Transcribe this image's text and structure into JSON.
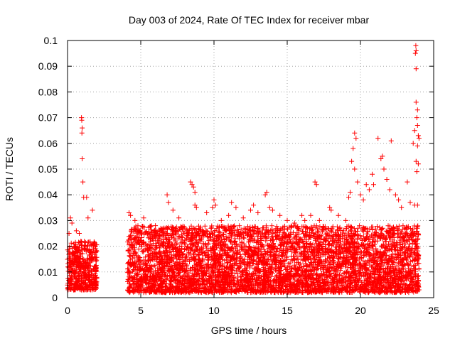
{
  "chart_data": {
    "type": "scatter",
    "title": "Day 003 of 2024, Rate Of TEC Index for receiver mbar",
    "xlabel": "GPS time / hours",
    "ylabel": "ROTI / TECUs",
    "xlim": [
      0,
      25
    ],
    "ylim": [
      0,
      0.1
    ],
    "x_ticks": [
      "0",
      "5",
      "10",
      "15",
      "20",
      "25"
    ],
    "y_ticks": [
      "0",
      "0.01",
      "0.02",
      "0.03",
      "0.04",
      "0.05",
      "0.06",
      "0.07",
      "0.08",
      "0.09",
      "0.1"
    ],
    "x_tick_values": [
      0,
      5,
      10,
      15,
      20,
      25
    ],
    "y_tick_values": [
      0,
      0.01,
      0.02,
      0.03,
      0.04,
      0.05,
      0.06,
      0.07,
      0.08,
      0.09,
      0.1
    ],
    "grid": true,
    "marker": "+",
    "series_color": "#ff0000",
    "dense_bands": [
      {
        "x_range": [
          0.0,
          2.0
        ],
        "y_range": [
          0.003,
          0.022
        ]
      },
      {
        "x_range": [
          4.1,
          24.0
        ],
        "y_range": [
          0.002,
          0.028
        ]
      }
    ],
    "points": [
      [
        0.1,
        0.025
      ],
      [
        0.2,
        0.031
      ],
      [
        0.3,
        0.029
      ],
      [
        0.6,
        0.026
      ],
      [
        0.8,
        0.025
      ],
      [
        0.95,
        0.07
      ],
      [
        0.97,
        0.069
      ],
      [
        1.0,
        0.066
      ],
      [
        0.98,
        0.064
      ],
      [
        1.0,
        0.054
      ],
      [
        1.05,
        0.045
      ],
      [
        1.1,
        0.039
      ],
      [
        1.3,
        0.039
      ],
      [
        1.4,
        0.031
      ],
      [
        1.7,
        0.034
      ],
      [
        4.2,
        0.033
      ],
      [
        4.3,
        0.032
      ],
      [
        4.6,
        0.03
      ],
      [
        5.2,
        0.031
      ],
      [
        6.0,
        0.028
      ],
      [
        6.8,
        0.04
      ],
      [
        6.9,
        0.037
      ],
      [
        7.2,
        0.034
      ],
      [
        7.6,
        0.031
      ],
      [
        8.4,
        0.045
      ],
      [
        8.5,
        0.044
      ],
      [
        8.6,
        0.043
      ],
      [
        8.7,
        0.041
      ],
      [
        8.7,
        0.036
      ],
      [
        8.8,
        0.035
      ],
      [
        9.5,
        0.033
      ],
      [
        9.9,
        0.035
      ],
      [
        10.0,
        0.038
      ],
      [
        10.1,
        0.036
      ],
      [
        10.5,
        0.03
      ],
      [
        11.0,
        0.032
      ],
      [
        11.2,
        0.037
      ],
      [
        11.5,
        0.035
      ],
      [
        12.0,
        0.031
      ],
      [
        12.5,
        0.034
      ],
      [
        12.7,
        0.036
      ],
      [
        13.0,
        0.033
      ],
      [
        13.5,
        0.04
      ],
      [
        13.6,
        0.041
      ],
      [
        13.8,
        0.035
      ],
      [
        14.0,
        0.034
      ],
      [
        14.5,
        0.032
      ],
      [
        15.0,
        0.03
      ],
      [
        15.5,
        0.029
      ],
      [
        16.0,
        0.032
      ],
      [
        16.2,
        0.03
      ],
      [
        16.6,
        0.032
      ],
      [
        16.9,
        0.045
      ],
      [
        17.0,
        0.044
      ],
      [
        17.2,
        0.03
      ],
      [
        17.9,
        0.035
      ],
      [
        18.0,
        0.034
      ],
      [
        18.5,
        0.032
      ],
      [
        19.0,
        0.03
      ],
      [
        19.2,
        0.039
      ],
      [
        19.3,
        0.041
      ],
      [
        19.4,
        0.053
      ],
      [
        19.5,
        0.058
      ],
      [
        19.6,
        0.064
      ],
      [
        19.7,
        0.062
      ],
      [
        19.6,
        0.05
      ],
      [
        19.8,
        0.045
      ],
      [
        20.0,
        0.04
      ],
      [
        20.2,
        0.038
      ],
      [
        20.4,
        0.044
      ],
      [
        20.6,
        0.042
      ],
      [
        20.8,
        0.048
      ],
      [
        20.9,
        0.044
      ],
      [
        21.2,
        0.062
      ],
      [
        21.4,
        0.054
      ],
      [
        21.5,
        0.055
      ],
      [
        21.6,
        0.05
      ],
      [
        21.8,
        0.046
      ],
      [
        22.0,
        0.042
      ],
      [
        22.1,
        0.061
      ],
      [
        22.4,
        0.04
      ],
      [
        22.6,
        0.038
      ],
      [
        22.8,
        0.035
      ],
      [
        23.2,
        0.045
      ],
      [
        23.4,
        0.037
      ],
      [
        23.6,
        0.06
      ],
      [
        23.7,
        0.065
      ],
      [
        23.8,
        0.076
      ],
      [
        23.75,
        0.095
      ],
      [
        23.8,
        0.096
      ],
      [
        23.78,
        0.098
      ],
      [
        23.8,
        0.089
      ],
      [
        23.9,
        0.073
      ],
      [
        23.85,
        0.07
      ],
      [
        23.9,
        0.067
      ],
      [
        23.95,
        0.063
      ],
      [
        23.9,
        0.059
      ],
      [
        23.8,
        0.053
      ],
      [
        23.95,
        0.052
      ],
      [
        23.9,
        0.036
      ],
      [
        23.7,
        0.036
      ],
      [
        23.85,
        0.049
      ],
      [
        24.0,
        0.062
      ]
    ]
  }
}
